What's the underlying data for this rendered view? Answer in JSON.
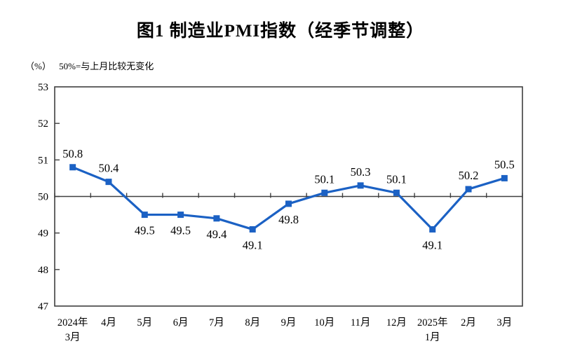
{
  "chart_data": {
    "type": "line",
    "title": "图1 制造业PMI指数（经季节调整）",
    "unit_label": "（%）",
    "note": "50%=与上月比较无变化",
    "categories": [
      [
        "2024年",
        "3月"
      ],
      [
        "4月"
      ],
      [
        "5月"
      ],
      [
        "6月"
      ],
      [
        "7月"
      ],
      [
        "8月"
      ],
      [
        "9月"
      ],
      [
        "10月"
      ],
      [
        "11月"
      ],
      [
        "12月"
      ],
      [
        "2025年",
        "1月"
      ],
      [
        "2月"
      ],
      [
        "3月"
      ]
    ],
    "values": [
      50.8,
      50.4,
      49.5,
      49.5,
      49.4,
      49.1,
      49.8,
      50.1,
      50.3,
      50.1,
      49.1,
      50.2,
      50.5
    ],
    "label_positions": [
      "above",
      "above",
      "below",
      "below",
      "below",
      "below",
      "below",
      "above",
      "above",
      "above",
      "below",
      "above",
      "above"
    ],
    "baseline": 50,
    "ylim": [
      47,
      53
    ],
    "yticks": [
      47,
      48,
      49,
      50,
      51,
      52,
      53
    ],
    "series_color": "#1b61c4",
    "axis_color": "#3f3f3f",
    "grid": false,
    "legend": false
  }
}
